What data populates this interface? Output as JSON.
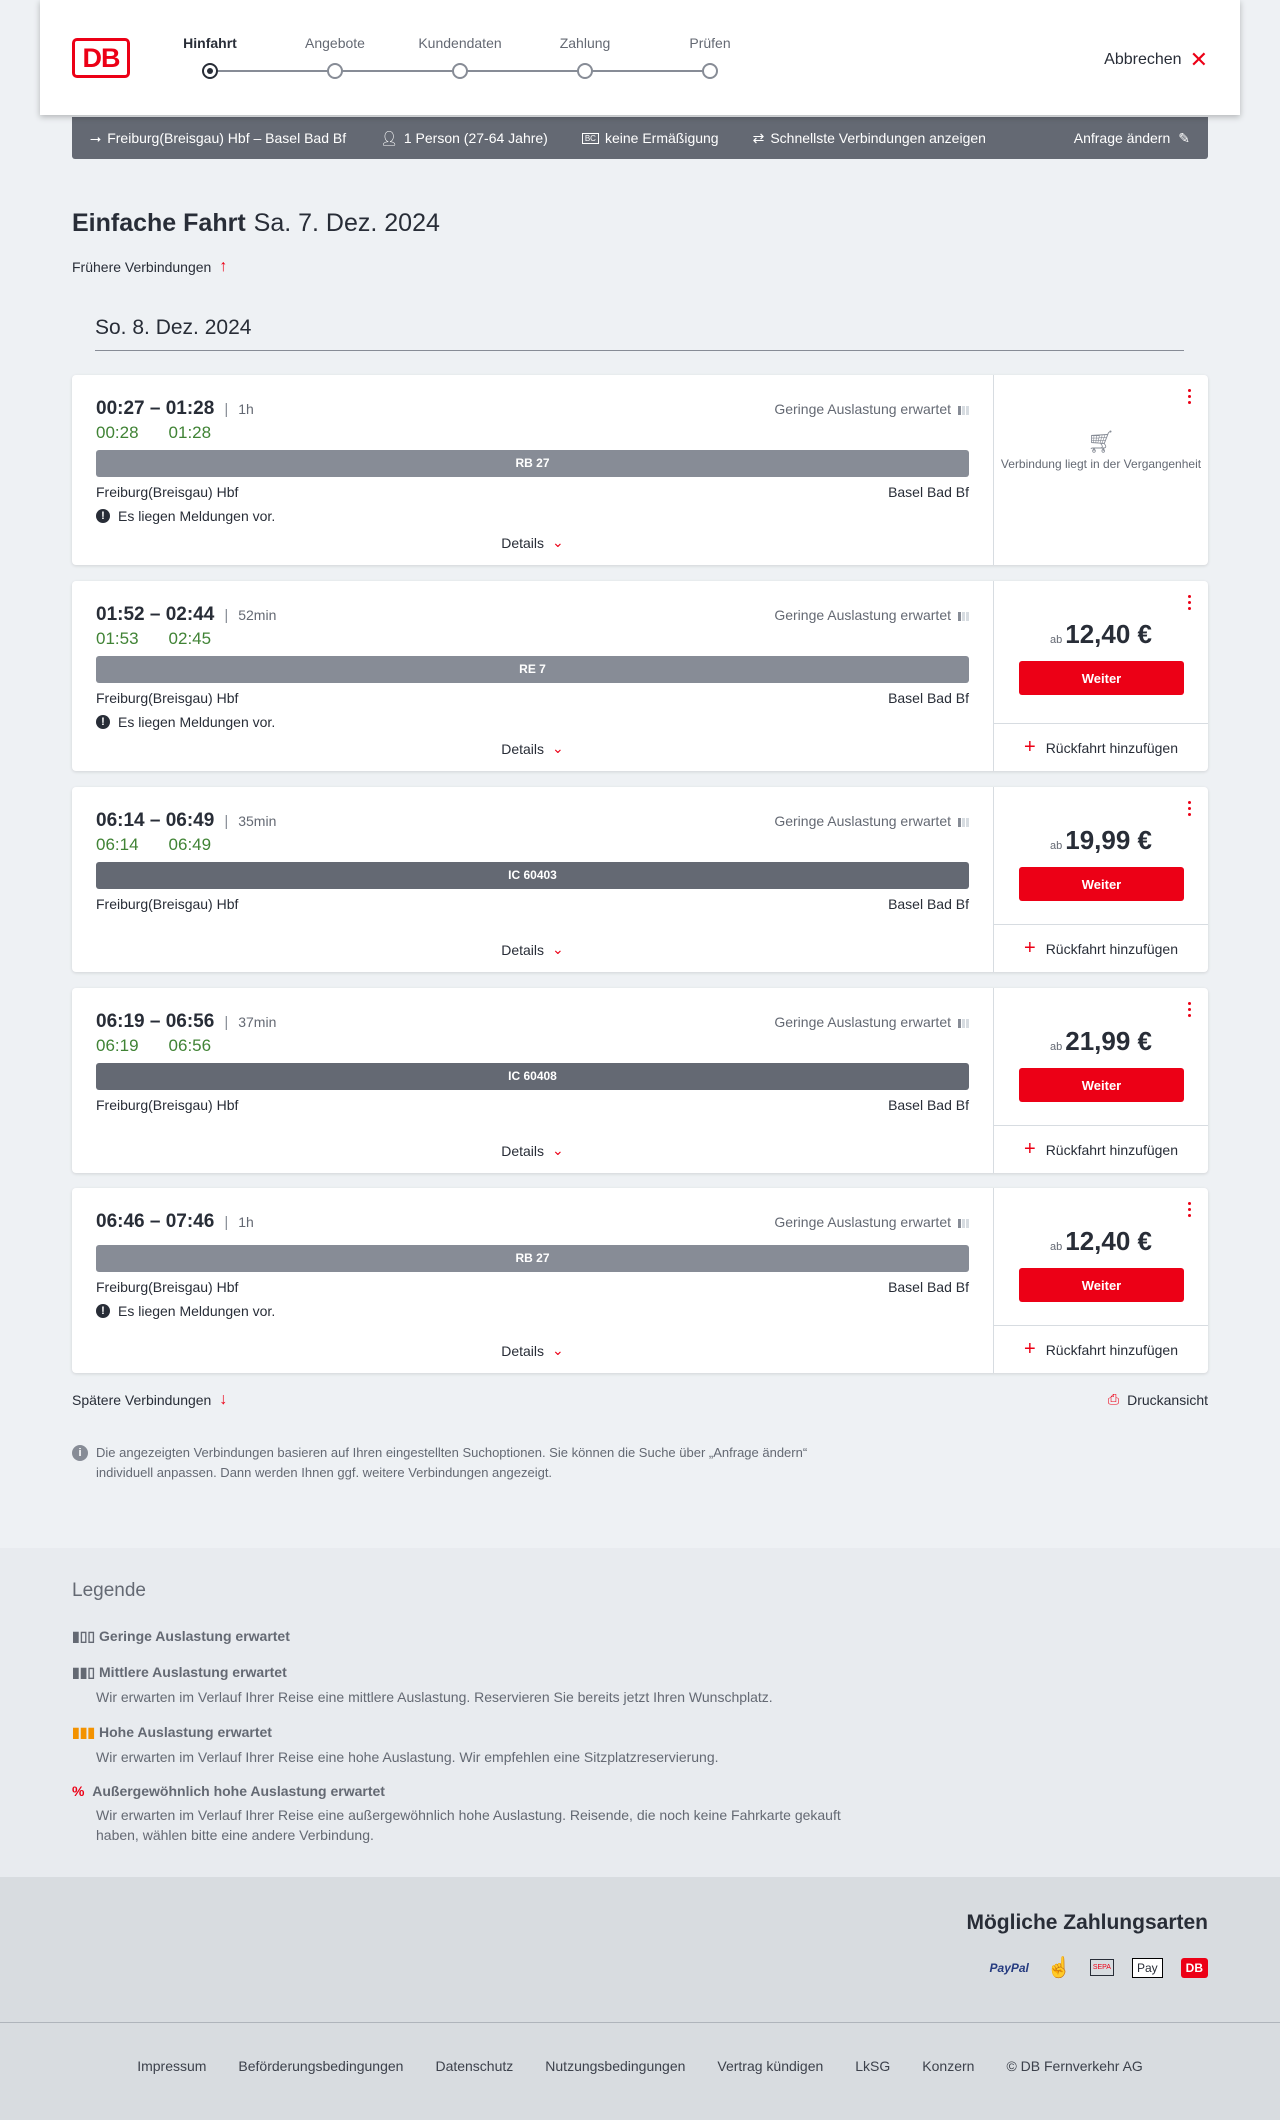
{
  "header": {
    "logo": "DB",
    "steps": [
      {
        "label": "Hinfahrt",
        "active": true
      },
      {
        "label": "Angebote"
      },
      {
        "label": "Kundendaten"
      },
      {
        "label": "Zahlung"
      },
      {
        "label": "Prüfen"
      }
    ],
    "cancel": "Abbrechen"
  },
  "query": {
    "route": "Freiburg(Breisgau) Hbf – Basel Bad Bf",
    "persons": "1 Person (27-64 Jahre)",
    "discount": "keine Ermäßigung",
    "filter": "Schnellste Verbindungen anzeigen",
    "edit": "Anfrage ändern"
  },
  "title": {
    "type": "Einfache Fahrt",
    "date": "Sa. 7. Dez. 2024"
  },
  "earlier": "Frühere Verbindungen",
  "later": "Spätere Verbindungen",
  "print": "Druckansicht",
  "day": "So. 8. Dez. 2024",
  "occupancy_text": "Geringe Auslastung erwartet",
  "details_label": "Details",
  "message": "Es liegen Meldungen vor.",
  "weiter": "Weiter",
  "return": "Rückfahrt hinzufügen",
  "price_prefix": "ab",
  "past": "Verbindung liegt in der Vergangenheit",
  "connections": [
    {
      "times": "00:27 – 01:28",
      "duration": "1h",
      "rt_dep": "00:28",
      "rt_arr": "01:28",
      "train": "RB 27",
      "from": "Freiburg(Breisgau) Hbf",
      "to": "Basel Bad Bf",
      "message": true,
      "past": true
    },
    {
      "times": "01:52 – 02:44",
      "duration": "52min",
      "rt_dep": "01:53",
      "rt_arr": "02:45",
      "train": "RE 7",
      "from": "Freiburg(Breisgau) Hbf",
      "to": "Basel Bad Bf",
      "message": true,
      "price": "12,40 €"
    },
    {
      "times": "06:14 – 06:49",
      "duration": "35min",
      "rt_dep": "06:14",
      "rt_arr": "06:49",
      "train": "IC 60403",
      "from": "Freiburg(Breisgau) Hbf",
      "to": "Basel Bad Bf",
      "message": false,
      "price": "19,99 €"
    },
    {
      "times": "06:19 – 06:56",
      "duration": "37min",
      "rt_dep": "06:19",
      "rt_arr": "06:56",
      "train": "IC 60408",
      "from": "Freiburg(Breisgau) Hbf",
      "to": "Basel Bad Bf",
      "message": false,
      "price": "21,99 €"
    },
    {
      "times": "06:46 – 07:46",
      "duration": "1h",
      "train": "RB 27",
      "from": "Freiburg(Breisgau) Hbf",
      "to": "Basel Bad Bf",
      "message": true,
      "price": "12,40 €"
    }
  ],
  "note": "Die angezeigten Verbindungen basieren auf Ihren eingestellten Suchoptionen. Sie können die Suche über „Anfrage ändern“ individuell anpassen. Dann werden Ihnen ggf. weitere Verbindungen angezeigt.",
  "legend": {
    "title": "Legende",
    "items": [
      {
        "title": "Geringe Auslastung erwartet",
        "text": ""
      },
      {
        "title": "Mittlere Auslastung erwartet",
        "text": "Wir erwarten im Verlauf Ihrer Reise eine mittlere Auslastung. Reservieren Sie bereits jetzt Ihren Wunschplatz."
      },
      {
        "title": "Hohe Auslastung erwartet",
        "text": "Wir erwarten im Verlauf Ihrer Reise eine hohe Auslastung. Wir empfehlen eine Sitzplatzreservierung."
      },
      {
        "title": "Außergewöhnlich hohe Auslastung erwartet",
        "text": "Wir erwarten im Verlauf Ihrer Reise eine außergewöhnlich hohe Auslastung. Reisende, die noch keine Fahrkarte gekauft haben, wählen bitte eine andere Verbindung."
      }
    ]
  },
  "payment": {
    "title": "Mögliche Zahlungsarten",
    "methods": [
      "PayPal",
      "Kreditkarte",
      "SEPA",
      "Pay",
      "DB"
    ]
  },
  "footer": [
    "Impressum",
    "Beförderungsbedingungen",
    "Datenschutz",
    "Nutzungsbedingungen",
    "Vertrag kündigen",
    "LkSG",
    "Konzern",
    "© DB Fernverkehr AG"
  ],
  "colors": {
    "accent": "#ec0016",
    "realtime": "#408335",
    "bar": "#878c96",
    "bar_ic": "#646973"
  }
}
